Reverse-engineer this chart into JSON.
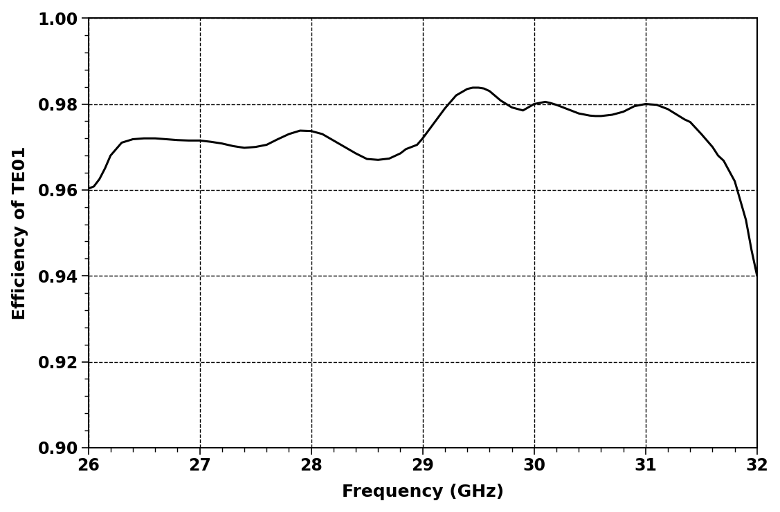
{
  "title": "",
  "xlabel": "Frequency (GHz)",
  "ylabel": "Efficiency of TE01",
  "xlim": [
    26,
    32
  ],
  "ylim": [
    0.9,
    1.0
  ],
  "xticks": [
    26,
    27,
    28,
    29,
    30,
    31,
    32
  ],
  "yticks": [
    0.9,
    0.92,
    0.94,
    0.96,
    0.98,
    1.0
  ],
  "line_color": "#000000",
  "line_width": 2.2,
  "background_color": "#ffffff",
  "grid_color": "#000000",
  "grid_linestyle": "--",
  "grid_linewidth": 1.0,
  "grid_alpha": 1.0,
  "xlabel_fontsize": 18,
  "ylabel_fontsize": 18,
  "tick_fontsize": 17,
  "curve_x": [
    26.0,
    26.05,
    26.1,
    26.15,
    26.2,
    26.3,
    26.4,
    26.5,
    26.6,
    26.7,
    26.8,
    26.9,
    27.0,
    27.1,
    27.2,
    27.3,
    27.4,
    27.5,
    27.6,
    27.7,
    27.8,
    27.9,
    28.0,
    28.1,
    28.2,
    28.3,
    28.4,
    28.5,
    28.6,
    28.7,
    28.8,
    28.85,
    28.9,
    28.95,
    29.0,
    29.1,
    29.2,
    29.3,
    29.4,
    29.45,
    29.5,
    29.55,
    29.6,
    29.7,
    29.8,
    29.9,
    30.0,
    30.1,
    30.15,
    30.2,
    30.3,
    30.4,
    30.5,
    30.55,
    30.6,
    30.7,
    30.8,
    30.9,
    31.0,
    31.1,
    31.2,
    31.3,
    31.35,
    31.4,
    31.5,
    31.6,
    31.65,
    31.7,
    31.8,
    31.9,
    31.95,
    32.0
  ],
  "curve_y": [
    0.9603,
    0.9608,
    0.9625,
    0.965,
    0.968,
    0.971,
    0.9718,
    0.972,
    0.972,
    0.9718,
    0.9716,
    0.9715,
    0.9715,
    0.9712,
    0.9708,
    0.9702,
    0.9698,
    0.97,
    0.9705,
    0.9718,
    0.973,
    0.9738,
    0.9737,
    0.973,
    0.9715,
    0.97,
    0.9685,
    0.9672,
    0.967,
    0.9673,
    0.9685,
    0.9695,
    0.97,
    0.9705,
    0.972,
    0.9755,
    0.979,
    0.982,
    0.9835,
    0.9838,
    0.9838,
    0.9836,
    0.983,
    0.9808,
    0.9792,
    0.9785,
    0.98,
    0.9805,
    0.9802,
    0.9798,
    0.9788,
    0.9778,
    0.9773,
    0.9772,
    0.9772,
    0.9775,
    0.9782,
    0.9795,
    0.98,
    0.9798,
    0.9788,
    0.9772,
    0.9764,
    0.9758,
    0.973,
    0.97,
    0.968,
    0.9668,
    0.962,
    0.953,
    0.946,
    0.94
  ]
}
